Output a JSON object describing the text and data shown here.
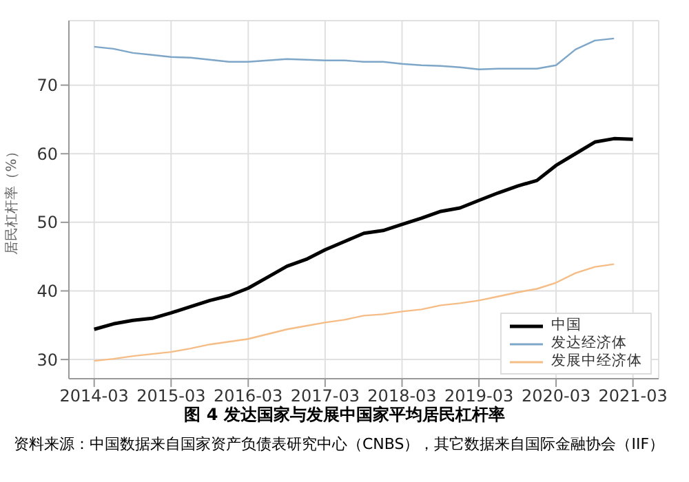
{
  "chart_data": {
    "type": "line",
    "title": "图 4 发达国家与发展中国家平均居民杠杆率",
    "ylabel": "居民杠杆率（%）",
    "annotations": [
      "资料来源：中国数据来自国家资产负债表研究中心（CNBS），其它数据来自国际金融协会（IIF）"
    ],
    "x": [
      "2014-03",
      "2014-06",
      "2014-09",
      "2014-12",
      "2015-03",
      "2015-06",
      "2015-09",
      "2015-12",
      "2016-03",
      "2016-06",
      "2016-09",
      "2016-12",
      "2017-03",
      "2017-06",
      "2017-09",
      "2017-12",
      "2018-03",
      "2018-06",
      "2018-09",
      "2018-12",
      "2019-03",
      "2019-06",
      "2019-09",
      "2019-12",
      "2020-03",
      "2020-06",
      "2020-09",
      "2020-12",
      "2021-03"
    ],
    "series": [
      {
        "name": "中国",
        "color": "#000000",
        "values": [
          34.4,
          35.2,
          35.7,
          36.0,
          36.8,
          37.7,
          38.6,
          39.3,
          40.4,
          42.0,
          43.6,
          44.6,
          46.0,
          47.2,
          48.4,
          48.8,
          49.7,
          50.6,
          51.6,
          52.1,
          53.2,
          54.3,
          55.3,
          56.1,
          58.3,
          60.0,
          61.7,
          62.2,
          62.1
        ]
      },
      {
        "name": "发达经济体",
        "color": "#7ea6c8",
        "values": [
          75.6,
          75.3,
          74.7,
          74.4,
          74.1,
          74.0,
          73.7,
          73.4,
          73.4,
          73.6,
          73.8,
          73.7,
          73.6,
          73.6,
          73.4,
          73.4,
          73.1,
          72.9,
          72.8,
          72.6,
          72.3,
          72.4,
          72.4,
          72.4,
          72.9,
          75.2,
          76.5,
          76.8,
          null
        ]
      },
      {
        "name": "发展中经济体",
        "color": "#f5bd85",
        "values": [
          29.8,
          30.1,
          30.5,
          30.8,
          31.1,
          31.6,
          32.2,
          32.6,
          33.0,
          33.7,
          34.4,
          34.9,
          35.4,
          35.8,
          36.4,
          36.6,
          37.0,
          37.3,
          37.9,
          38.2,
          38.6,
          39.2,
          39.8,
          40.3,
          41.2,
          42.6,
          43.5,
          43.9,
          null
        ]
      }
    ],
    "xlim": [
      "2013-11",
      "2021-07"
    ],
    "xticks": [
      "2014-03",
      "2015-03",
      "2016-03",
      "2017-03",
      "2018-03",
      "2019-03",
      "2020-03",
      "2021-03"
    ],
    "ylim": [
      27.2,
      79.4
    ],
    "yticks": [
      30,
      40,
      50,
      60,
      70
    ],
    "grid": true,
    "legend": "bottom right"
  }
}
